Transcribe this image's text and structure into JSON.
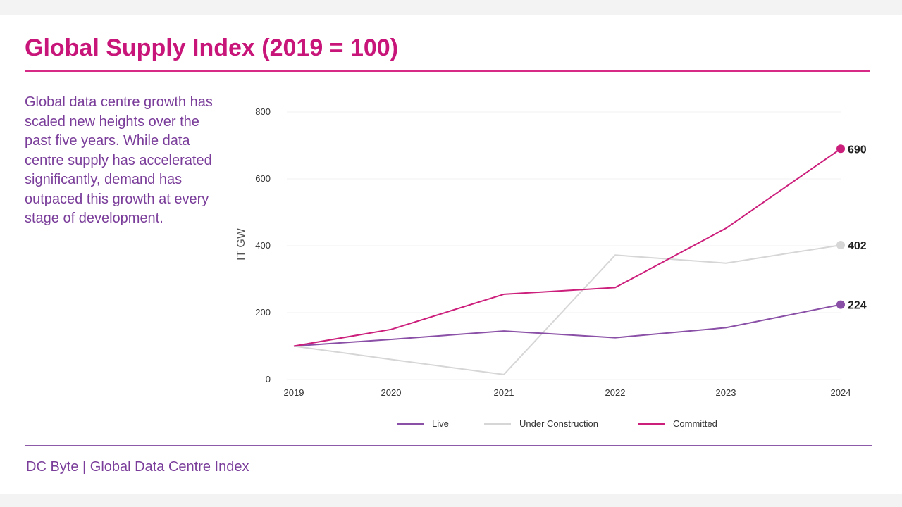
{
  "title": "Global Supply Index (2019 = 100)",
  "description": "Global data centre growth has scaled new heights over the past five years. While data centre supply has accelerated significantly, demand has outpaced this growth at every stage of development.",
  "footer": "DC Byte | Global Data Centre Index",
  "colors": {
    "title": "#c8157a",
    "text": "#7a3d9a",
    "live": "#8a4fa6",
    "under_construction": "#d6d6d6",
    "committed": "#cc1f7c"
  },
  "chart_data": {
    "type": "line",
    "title": "",
    "xlabel": "",
    "ylabel": "IT GW",
    "x": [
      "2019",
      "2020",
      "2021",
      "2022",
      "2023",
      "2024"
    ],
    "ylim": [
      0,
      800
    ],
    "yticks": [
      0,
      200,
      400,
      600,
      800
    ],
    "grid": true,
    "legend_position": "bottom",
    "series": [
      {
        "name": "Live",
        "color": "#8a4fa6",
        "values": [
          100,
          120,
          145,
          125,
          155,
          224
        ],
        "end_label": "224"
      },
      {
        "name": "Under Construction",
        "color": "#d6d6d6",
        "values": [
          100,
          60,
          15,
          372,
          348,
          402
        ],
        "end_label": "402"
      },
      {
        "name": "Committed",
        "color": "#cc1f7c",
        "values": [
          100,
          150,
          255,
          275,
          452,
          690
        ],
        "end_label": "690"
      }
    ]
  }
}
